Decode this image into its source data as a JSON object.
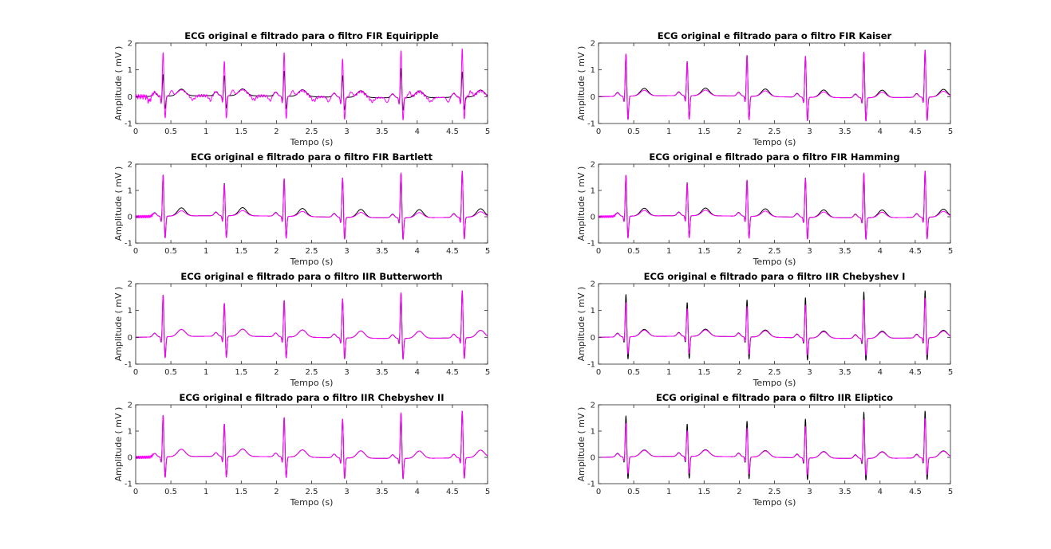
{
  "colors": {
    "original": "#000000",
    "filtered": "#ff00ff"
  },
  "chart_data": [
    {
      "type": "line",
      "title": "ECG original e filtrado para o filtro FIR Equiripple",
      "xlabel": "Tempo (s)",
      "ylabel": "Amplitude ( mV )",
      "xlim": [
        0,
        5
      ],
      "ylim": [
        -1,
        2
      ],
      "xticks": [
        "0",
        "0.5",
        "1",
        "1.5",
        "2",
        "2.5",
        "3",
        "3.5",
        "4",
        "4.5",
        "5"
      ],
      "yticks": [
        "-1",
        "0",
        "1",
        "2"
      ],
      "filter": "fir-equiripple",
      "original_r_peaks": [
        0.82,
        0.75,
        0.95,
        0.82,
        1.1,
        0.95
      ],
      "filtered_r_peaks": [
        1.65,
        1.3,
        1.65,
        1.45,
        1.78,
        1.8
      ],
      "series": []
    },
    {
      "type": "line",
      "title": "ECG original e filtrado para o filtro FIR Kaiser",
      "xlabel": "Tempo (s)",
      "ylabel": "Amplitude ( mV )",
      "xlim": [
        0,
        5
      ],
      "ylim": [
        -1,
        2
      ],
      "xticks": [
        "0",
        "0.5",
        "1",
        "1.5",
        "2",
        "2.5",
        "3",
        "3.5",
        "4",
        "4.5",
        "5"
      ],
      "yticks": [
        "-1",
        "0",
        "1",
        "2"
      ],
      "filter": "fir-kaiser",
      "original_r_peaks": [
        1.58,
        1.3,
        1.55,
        1.55,
        1.72,
        1.78
      ],
      "filtered_r_peaks": [
        1.6,
        1.28,
        1.55,
        1.55,
        1.72,
        1.78
      ],
      "series": []
    },
    {
      "type": "line",
      "title": "ECG original e filtrado para o filtro FIR Bartlett",
      "xlabel": "Tempo (s)",
      "ylabel": "Amplitude ( mV )",
      "xlim": [
        0,
        5
      ],
      "ylim": [
        -1,
        2
      ],
      "xticks": [
        "0",
        "0.5",
        "1",
        "1.5",
        "2",
        "2.5",
        "3",
        "3.5",
        "4",
        "4.5",
        "5"
      ],
      "yticks": [
        "-1",
        "0",
        "1",
        "2"
      ],
      "filter": "fir-bartlett",
      "original_r_peaks": [
        1.58,
        1.25,
        1.45,
        1.52,
        1.72,
        1.78
      ],
      "filtered_r_peaks": [
        1.6,
        1.22,
        1.45,
        1.52,
        1.72,
        1.78
      ],
      "series": []
    },
    {
      "type": "line",
      "title": "ECG original e filtrado para o filtro FIR Hamming",
      "xlabel": "Tempo (s)",
      "ylabel": "Amplitude ( mV )",
      "xlim": [
        0,
        5
      ],
      "ylim": [
        -1,
        2
      ],
      "xticks": [
        "0",
        "0.5",
        "1",
        "1.5",
        "2",
        "2.5",
        "3",
        "3.5",
        "4",
        "4.5",
        "5"
      ],
      "yticks": [
        "-1",
        "0",
        "1",
        "2"
      ],
      "filter": "fir-hamming",
      "original_r_peaks": [
        1.58,
        1.28,
        1.4,
        1.52,
        1.72,
        1.78
      ],
      "filtered_r_peaks": [
        1.58,
        1.25,
        1.4,
        1.5,
        1.72,
        1.78
      ],
      "series": []
    },
    {
      "type": "line",
      "title": "ECG original e filtrado para o filtro IIR Butterworth",
      "xlabel": "Tempo (s)",
      "ylabel": "Amplitude ( mV )",
      "xlim": [
        0,
        5
      ],
      "ylim": [
        -1,
        2
      ],
      "xticks": [
        "0",
        "0.5",
        "1",
        "1.5",
        "2",
        "2.5",
        "3",
        "3.5",
        "4",
        "4.5",
        "5"
      ],
      "yticks": [
        "-1",
        "0",
        "1",
        "2"
      ],
      "filter": "iir-butterworth",
      "original_r_peaks": [
        1.58,
        1.25,
        1.38,
        1.48,
        1.72,
        1.78
      ],
      "filtered_r_peaks": [
        1.58,
        1.25,
        1.38,
        1.48,
        1.72,
        1.78
      ],
      "series": []
    },
    {
      "type": "line",
      "title": "ECG original e filtrado para o filtro IIR Chebyshev I",
      "xlabel": "Tempo (s)",
      "ylabel": "Amplitude ( mV )",
      "xlim": [
        0,
        5
      ],
      "ylim": [
        -1,
        2
      ],
      "xticks": [
        "0",
        "0.5",
        "1",
        "1.5",
        "2",
        "2.5",
        "3",
        "3.5",
        "4",
        "4.5",
        "5"
      ],
      "yticks": [
        "-1",
        "0",
        "1",
        "2"
      ],
      "filter": "iir-chebyshev-1",
      "original_r_peaks": [
        1.6,
        1.28,
        1.4,
        1.52,
        1.75,
        1.78
      ],
      "filtered_r_peaks": [
        1.3,
        1.05,
        1.15,
        1.25,
        1.45,
        1.5
      ],
      "series": []
    },
    {
      "type": "line",
      "title": "ECG original e filtrado para o filtro IIR Chebyshev II",
      "xlabel": "Tempo (s)",
      "ylabel": "Amplitude ( mV )",
      "xlim": [
        0,
        5
      ],
      "ylim": [
        -1,
        2
      ],
      "xticks": [
        "0",
        "0.5",
        "1",
        "1.5",
        "2",
        "2.5",
        "3",
        "3.5",
        "4",
        "4.5",
        "5"
      ],
      "yticks": [
        "-1",
        "0",
        "1",
        "2"
      ],
      "filter": "iir-chebyshev-2",
      "original_r_peaks": [
        1.6,
        1.25,
        1.52,
        1.5,
        1.75,
        1.8
      ],
      "filtered_r_peaks": [
        1.6,
        1.25,
        1.52,
        1.5,
        1.75,
        1.8
      ],
      "series": []
    },
    {
      "type": "line",
      "title": "ECG original e filtrado para o filtro IIR Eliptico",
      "xlabel": "Tempo (s)",
      "ylabel": "Amplitude ( mV )",
      "xlim": [
        0,
        5
      ],
      "ylim": [
        -1,
        2
      ],
      "xticks": [
        "0",
        "0.5",
        "1",
        "1.5",
        "2",
        "2.5",
        "3",
        "3.5",
        "4",
        "4.5",
        "5"
      ],
      "yticks": [
        "-1",
        "0",
        "1",
        "2"
      ],
      "filter": "iir-eliptico",
      "original_r_peaks": [
        1.58,
        1.25,
        1.38,
        1.5,
        1.78,
        1.8
      ],
      "filtered_r_peaks": [
        1.3,
        1.0,
        1.12,
        1.22,
        1.5,
        1.52
      ],
      "series": []
    }
  ]
}
